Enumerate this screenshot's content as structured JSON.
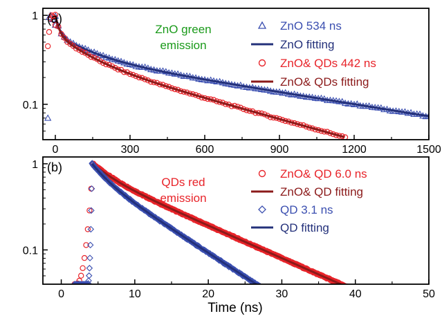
{
  "chart_data": [
    {
      "type": "scatter",
      "panel_label": "(a)",
      "annotation": [
        "ZnO green",
        "emission"
      ],
      "annotation_color": "#1a9a1a",
      "xlabel": "",
      "ylabel": "",
      "xlim": [
        -50,
        1500
      ],
      "ylim": [
        0.04,
        1.2
      ],
      "y_scale": "log",
      "x_ticks": [
        0,
        300,
        600,
        900,
        1200,
        1500
      ],
      "y_ticks": [
        0.1,
        1
      ],
      "y_tick_labels": [
        "0.1",
        "1"
      ],
      "legend_placement": "top-right",
      "series": [
        {
          "name": "ZnO 534 ns",
          "kind": "markers",
          "marker": "triangle",
          "color": "#3b4fb0",
          "points": [
            [
              -30,
              0.07
            ],
            [
              -25,
              0.95
            ],
            [
              -20,
              1.0
            ],
            [
              -10,
              0.9
            ],
            [
              0,
              0.78
            ]
          ],
          "decay": {
            "t0": 0,
            "amp": [
              0.38,
              0.27,
              0.35
            ],
            "tau": [
              14,
              130,
              960
            ],
            "t_end": 1500
          }
        },
        {
          "name": "ZnO fitting",
          "kind": "line",
          "color": "#23307a",
          "decay": {
            "t0": 0,
            "amp": [
              0.38,
              0.27,
              0.35
            ],
            "tau": [
              14,
              130,
              960
            ],
            "t_end": 1500
          }
        },
        {
          "name": "ZnO& QDs 442 ns",
          "kind": "markers",
          "marker": "circle",
          "color": "#e8242a",
          "points": [
            [
              -30,
              0.45
            ],
            [
              -25,
              0.65
            ],
            [
              -20,
              0.92
            ],
            [
              -15,
              1.0
            ],
            [
              -10,
              0.97
            ],
            [
              -5,
              0.88
            ],
            [
              0,
              0.78
            ]
          ],
          "decay": {
            "t0": 0,
            "amp": [
              0.38,
              0.28,
              0.34
            ],
            "tau": [
              14,
              115,
              560
            ],
            "t_end": 1160
          }
        },
        {
          "name": "ZnO& QDs fitting",
          "kind": "line",
          "color": "#8b1a1a",
          "decay": {
            "t0": 0,
            "amp": [
              0.38,
              0.28,
              0.34
            ],
            "tau": [
              14,
              115,
              560
            ],
            "t_end": 1160
          }
        }
      ]
    },
    {
      "type": "scatter",
      "panel_label": "(b)",
      "annotation": [
        "QDs red",
        "emission"
      ],
      "annotation_color": "#e8242a",
      "xlabel": "Time (ns)",
      "ylabel": "",
      "xlim": [
        -2.5,
        50
      ],
      "ylim": [
        0.04,
        1.2
      ],
      "y_scale": "log",
      "x_ticks": [
        0,
        10,
        20,
        30,
        40,
        50
      ],
      "y_ticks": [
        0.1,
        1
      ],
      "y_tick_labels": [
        "0.1",
        "1"
      ],
      "legend_placement": "top-right",
      "series": [
        {
          "name": "ZnO& QD 6.0 ns",
          "kind": "markers",
          "marker": "circle",
          "color": "#e8242a",
          "rise": {
            "t_start": 2,
            "t_peak": 4.3,
            "floor": 0.04
          },
          "decay": {
            "t0": 4.3,
            "amp": [
              0.25,
              0.75
            ],
            "tau": [
              2.5,
              11.5
            ],
            "t_end": 48.5
          }
        },
        {
          "name": "ZnO& QD fitting",
          "kind": "line",
          "color": "#8b1a1a",
          "decay": {
            "t0": 4.3,
            "amp": [
              0.25,
              0.75
            ],
            "tau": [
              2.5,
              11.5
            ],
            "t_end": 48
          }
        },
        {
          "name": "QD 3.1 ns",
          "kind": "markers",
          "marker": "diamond",
          "color": "#3b4fb0",
          "rise": {
            "t_start": 3.6,
            "t_peak": 4.2,
            "floor": 0.04
          },
          "decay": {
            "t0": 4.2,
            "amp": [
              0.3,
              0.7
            ],
            "tau": [
              2.0,
              7.8
            ],
            "t_end": 28
          }
        },
        {
          "name": "QD fitting",
          "kind": "line",
          "color": "#23307a",
          "decay": {
            "t0": 4.2,
            "amp": [
              0.3,
              0.7
            ],
            "tau": [
              2.0,
              7.8
            ],
            "t_end": 27.5
          }
        }
      ]
    }
  ]
}
